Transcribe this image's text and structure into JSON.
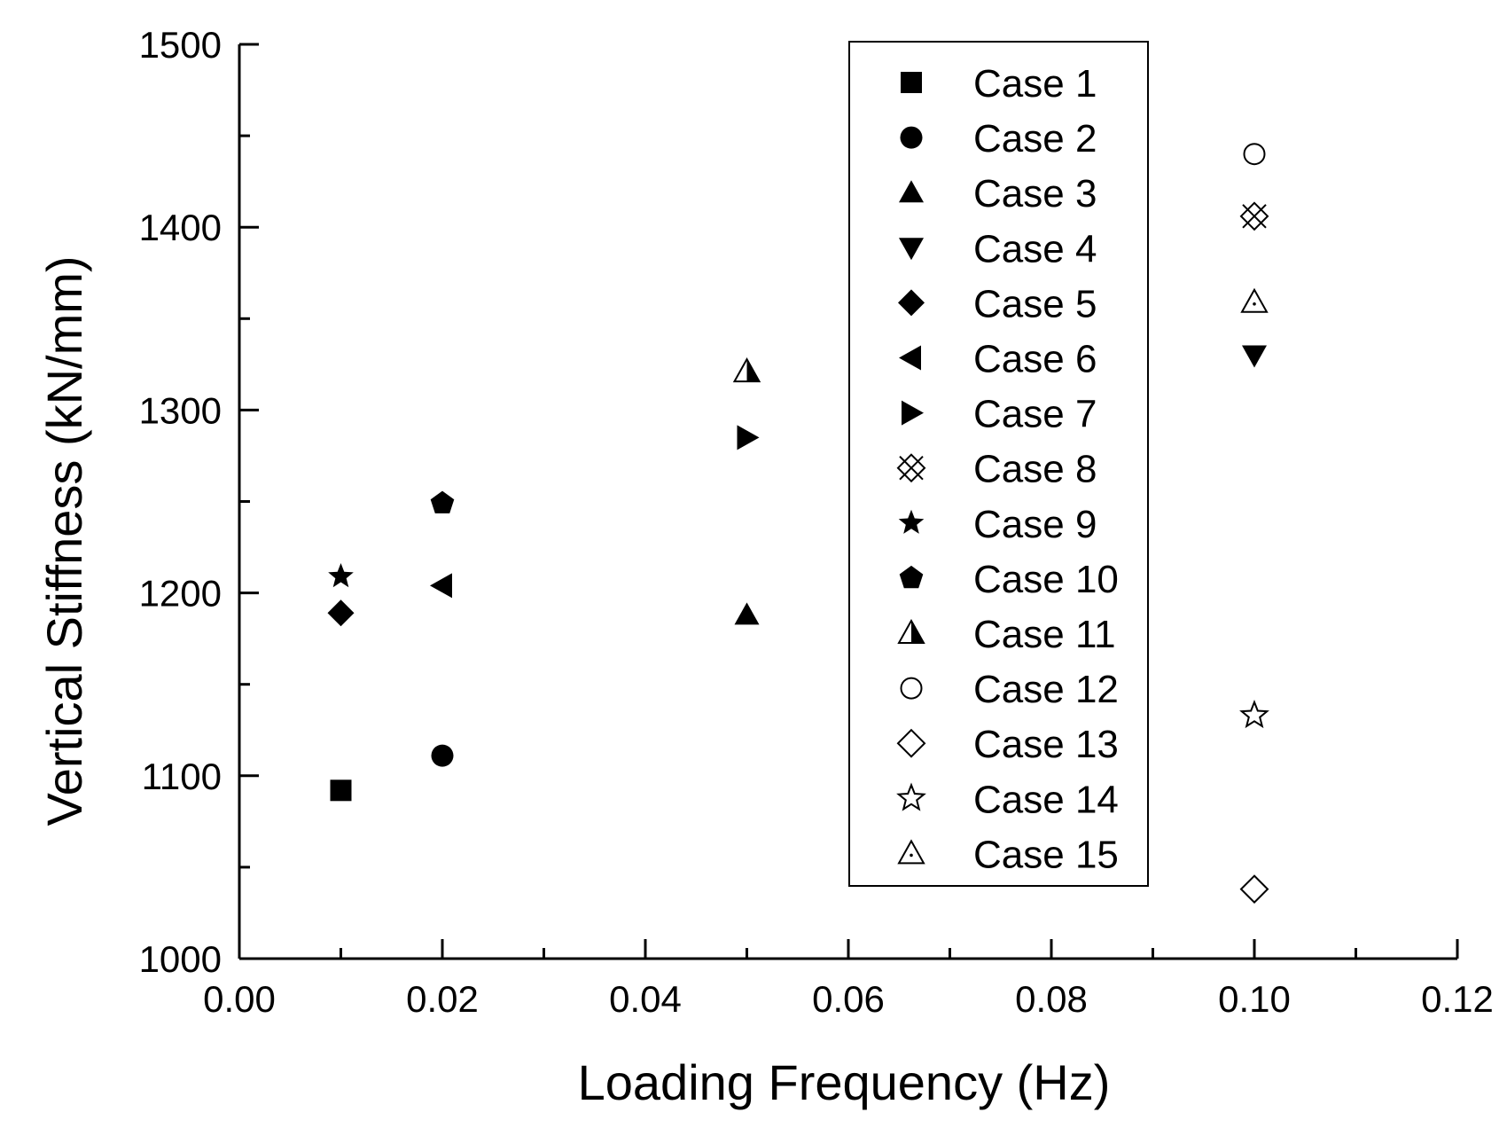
{
  "chart_data": {
    "type": "scatter",
    "title": "",
    "xlabel": "Loading Frequency (Hz)",
    "ylabel": "Vertical Stiffness (kN/mm)",
    "xlim": [
      0.0,
      0.12
    ],
    "ylim": [
      1000,
      1500
    ],
    "x_ticks": [
      {
        "value": 0.0,
        "label": "0.00"
      },
      {
        "value": 0.02,
        "label": "0.02"
      },
      {
        "value": 0.04,
        "label": "0.04"
      },
      {
        "value": 0.06,
        "label": "0.06"
      },
      {
        "value": 0.08,
        "label": "0.08"
      },
      {
        "value": 0.1,
        "label": "0.10"
      },
      {
        "value": 0.12,
        "label": "0.12"
      }
    ],
    "x_minor_step": 0.01,
    "y_ticks": [
      {
        "value": 1000,
        "label": "1000"
      },
      {
        "value": 1100,
        "label": "1100"
      },
      {
        "value": 1200,
        "label": "1200"
      },
      {
        "value": 1300,
        "label": "1300"
      },
      {
        "value": 1400,
        "label": "1400"
      },
      {
        "value": 1500,
        "label": "1500"
      }
    ],
    "y_minor_step": 50,
    "grid": false,
    "legend_position": "top-right",
    "series": [
      {
        "name": "Case 1",
        "marker": "square",
        "x": 0.01,
        "y": 1092
      },
      {
        "name": "Case 2",
        "marker": "circle",
        "x": 0.02,
        "y": 1111
      },
      {
        "name": "Case 3",
        "marker": "triangle-up",
        "x": 0.05,
        "y": 1188
      },
      {
        "name": "Case 4",
        "marker": "triangle-down",
        "x": 0.1,
        "y": 1330
      },
      {
        "name": "Case 5",
        "marker": "diamond",
        "x": 0.01,
        "y": 1189
      },
      {
        "name": "Case 6",
        "marker": "triangle-left",
        "x": 0.02,
        "y": 1204
      },
      {
        "name": "Case 7",
        "marker": "triangle-right",
        "x": 0.05,
        "y": 1285
      },
      {
        "name": "Case 8",
        "marker": "crossed-diamond",
        "x": 0.1,
        "y": 1406
      },
      {
        "name": "Case 9",
        "marker": "star",
        "x": 0.01,
        "y": 1209
      },
      {
        "name": "Case 10",
        "marker": "pentagon",
        "x": 0.02,
        "y": 1249
      },
      {
        "name": "Case 11",
        "marker": "half-triangle",
        "x": 0.05,
        "y": 1321
      },
      {
        "name": "Case 12",
        "marker": "open-circle",
        "x": 0.1,
        "y": 1440
      },
      {
        "name": "Case 13",
        "marker": "open-diamond",
        "x": 0.1,
        "y": 1038
      },
      {
        "name": "Case 14",
        "marker": "open-star",
        "x": 0.1,
        "y": 1133
      },
      {
        "name": "Case 15",
        "marker": "open-triangle-dot",
        "x": 0.1,
        "y": 1359
      }
    ]
  }
}
